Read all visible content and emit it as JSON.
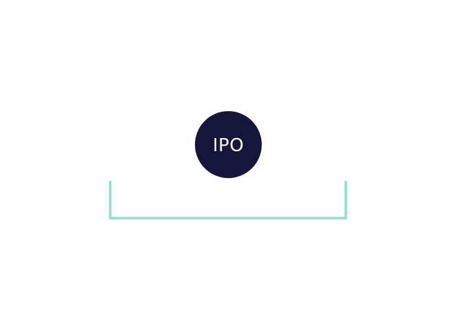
{
  "badge": {
    "label": "IPO",
    "fill_color": "#15163a",
    "text_color": "#ffffff"
  },
  "bracket": {
    "stroke_color": "#8ee0c6"
  }
}
